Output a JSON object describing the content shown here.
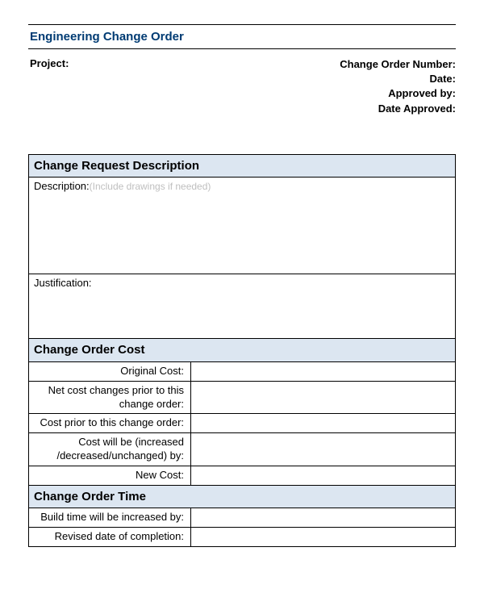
{
  "title": "Engineering Change Order",
  "header": {
    "project_label": "Project:",
    "change_order_number": "Change Order Number:",
    "date": "Date:",
    "approved_by": "Approved by:",
    "date_approved": "Date Approved:"
  },
  "sections": {
    "request": {
      "heading": "Change Request Description",
      "description_label": "Description:",
      "description_hint": "(Include drawings if needed)",
      "justification_label": "Justification:"
    },
    "cost": {
      "heading": "Change Order Cost",
      "original_cost": "Original Cost:",
      "net_changes": "Net cost changes prior to this change order:",
      "cost_prior": "Cost prior to this change order:",
      "cost_will_be": "Cost will be (increased /decreased/unchanged) by:",
      "new_cost": "New Cost:"
    },
    "time": {
      "heading": "Change Order Time",
      "build_time": "Build time will be increased by:",
      "revised_date": "Revised date of completion:"
    }
  },
  "colors": {
    "title_color": "#003b73",
    "section_bg": "#dce6f1",
    "hint_color": "#bfbfbf",
    "border": "#000000",
    "background": "#ffffff"
  }
}
